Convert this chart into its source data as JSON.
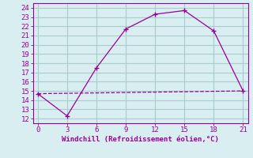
{
  "line1_x": [
    0,
    3,
    6,
    9,
    12,
    15,
    18,
    21
  ],
  "line1_y": [
    14.7,
    12.3,
    17.5,
    21.7,
    23.3,
    23.7,
    21.5,
    15.0
  ],
  "line2_x": [
    0,
    21
  ],
  "line2_y": [
    14.7,
    15.0
  ],
  "color": "#990099",
  "bg_color": "#d8eef0",
  "grid_color": "#aacccc",
  "xlabel": "Windchill (Refroidissement éolien,°C)",
  "xlim": [
    -0.5,
    21.5
  ],
  "ylim": [
    11.5,
    24.5
  ],
  "xticks": [
    0,
    3,
    6,
    9,
    12,
    15,
    18,
    21
  ],
  "yticks": [
    12,
    13,
    14,
    15,
    16,
    17,
    18,
    19,
    20,
    21,
    22,
    23,
    24
  ],
  "xlabel_fontsize": 6.5,
  "tick_fontsize": 6.5
}
